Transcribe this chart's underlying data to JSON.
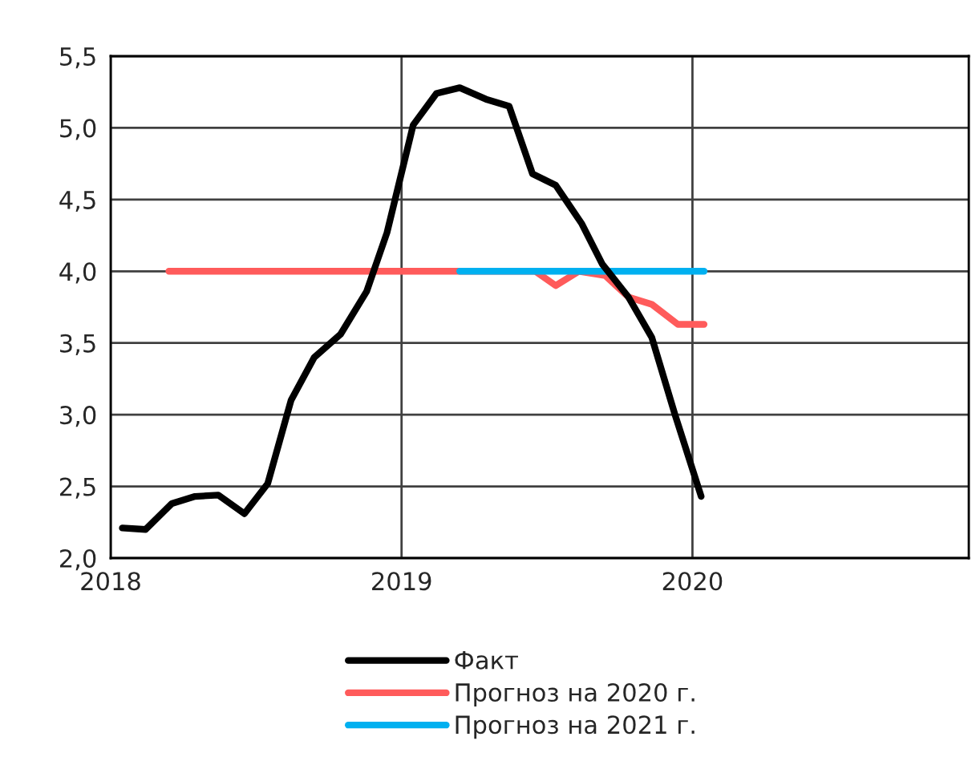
{
  "chart_data": {
    "type": "line",
    "xlim": [
      2018,
      2020.95
    ],
    "xticks": [
      2018,
      2019,
      2020
    ],
    "ylim": [
      2.0,
      5.5
    ],
    "yticks": [
      {
        "value": 2.0,
        "label": "2,0"
      },
      {
        "value": 2.5,
        "label": "2,5"
      },
      {
        "value": 3.0,
        "label": "3,0"
      },
      {
        "value": 3.5,
        "label": "3,5"
      },
      {
        "value": 4.0,
        "label": "4,0"
      },
      {
        "value": 4.5,
        "label": "4,5"
      },
      {
        "value": 5.0,
        "label": "5,0"
      },
      {
        "value": 5.5,
        "label": "5,5"
      }
    ],
    "grid": true,
    "legend": "bottom",
    "line_style": "solid",
    "marker": "none",
    "series": [
      {
        "name": "Факт",
        "color": "#000000",
        "x": [
          2018.04,
          2018.12,
          2018.21,
          2018.29,
          2018.37,
          2018.46,
          2018.54,
          2018.62,
          2018.7,
          2018.79,
          2018.88,
          2018.95,
          2019.04,
          2019.12,
          2019.2,
          2019.29,
          2019.37,
          2019.45,
          2019.53,
          2019.62,
          2019.69,
          2019.78,
          2019.86,
          2019.94,
          2020.03
        ],
        "values": [
          2.21,
          2.2,
          2.38,
          2.43,
          2.44,
          2.31,
          2.52,
          3.1,
          3.4,
          3.56,
          3.86,
          4.27,
          5.02,
          5.24,
          5.28,
          5.2,
          5.15,
          4.68,
          4.6,
          4.33,
          4.05,
          3.82,
          3.54,
          3.0,
          2.43
        ]
      },
      {
        "name": "Прогноз на 2020 г.",
        "color": "#ff5b5b",
        "x": [
          2018.2,
          2019.46,
          2019.53,
          2019.61,
          2019.7,
          2019.78,
          2019.86,
          2019.95,
          2020.04
        ],
        "values": [
          4.0,
          4.0,
          3.9,
          4.0,
          3.97,
          3.82,
          3.77,
          3.63,
          3.63
        ]
      },
      {
        "name": "Прогноз на 2021 г.",
        "color": "#00b0f0",
        "x": [
          2019.2,
          2020.04
        ],
        "values": [
          4.0,
          4.0
        ]
      }
    ]
  }
}
